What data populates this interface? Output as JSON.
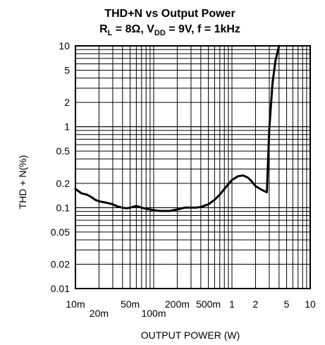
{
  "chart_data": {
    "type": "line",
    "title_line1": "THD+N vs Output Power",
    "title_line2": {
      "p1": "R",
      "s1": "L",
      "p2": " = 8Ω, V",
      "s2": "DD",
      "p3": " = 9V, f = 1kHz"
    },
    "xlabel": "OUTPUT POWER (W)",
    "ylabel": "THD + N(%)",
    "x_scale": "log",
    "y_scale": "log",
    "xlim": [
      0.01,
      10
    ],
    "ylim": [
      0.01,
      10
    ],
    "grid": true,
    "x_ticks": [
      {
        "value": 0.01,
        "label": "10m",
        "row": 0
      },
      {
        "value": 0.02,
        "label": "20m",
        "row": 1
      },
      {
        "value": 0.05,
        "label": "50m",
        "row": 0
      },
      {
        "value": 0.1,
        "label": "100m",
        "row": 1
      },
      {
        "value": 0.2,
        "label": "200m",
        "row": 0
      },
      {
        "value": 0.5,
        "label": "500m",
        "row": 0
      },
      {
        "value": 1,
        "label": "1",
        "row": 0
      },
      {
        "value": 2,
        "label": "2",
        "row": 0
      },
      {
        "value": 5,
        "label": "5",
        "row": 0
      },
      {
        "value": 10,
        "label": "10",
        "row": 0
      }
    ],
    "y_ticks": [
      {
        "value": 0.01,
        "label": "0.01"
      },
      {
        "value": 0.02,
        "label": "0.02"
      },
      {
        "value": 0.05,
        "label": "0.05"
      },
      {
        "value": 0.1,
        "label": "0.1"
      },
      {
        "value": 0.2,
        "label": "0.2"
      },
      {
        "value": 0.5,
        "label": "0.5"
      },
      {
        "value": 1,
        "label": "1"
      },
      {
        "value": 2,
        "label": "2"
      },
      {
        "value": 5,
        "label": "5"
      },
      {
        "value": 10,
        "label": "10"
      }
    ],
    "series": [
      {
        "color": "#000000",
        "x": [
          0.01,
          0.012,
          0.014,
          0.016,
          0.018,
          0.02,
          0.025,
          0.03,
          0.035,
          0.04,
          0.045,
          0.05,
          0.06,
          0.07,
          0.08,
          0.1,
          0.12,
          0.14,
          0.16,
          0.2,
          0.25,
          0.3,
          0.35,
          0.4,
          0.5,
          0.6,
          0.7,
          0.8,
          1.0,
          1.2,
          1.4,
          1.6,
          1.8,
          2.0,
          2.3,
          2.6,
          2.8,
          3.0,
          3.3,
          3.6,
          4.0
        ],
        "y": [
          0.17,
          0.15,
          0.145,
          0.135,
          0.125,
          0.12,
          0.115,
          0.11,
          0.103,
          0.1,
          0.098,
          0.1,
          0.105,
          0.1,
          0.097,
          0.093,
          0.091,
          0.091,
          0.091,
          0.095,
          0.1,
          0.1,
          0.1,
          0.102,
          0.11,
          0.125,
          0.145,
          0.17,
          0.22,
          0.245,
          0.25,
          0.235,
          0.21,
          0.185,
          0.17,
          0.16,
          0.155,
          0.95,
          3.5,
          6.5,
          10
        ]
      }
    ]
  }
}
